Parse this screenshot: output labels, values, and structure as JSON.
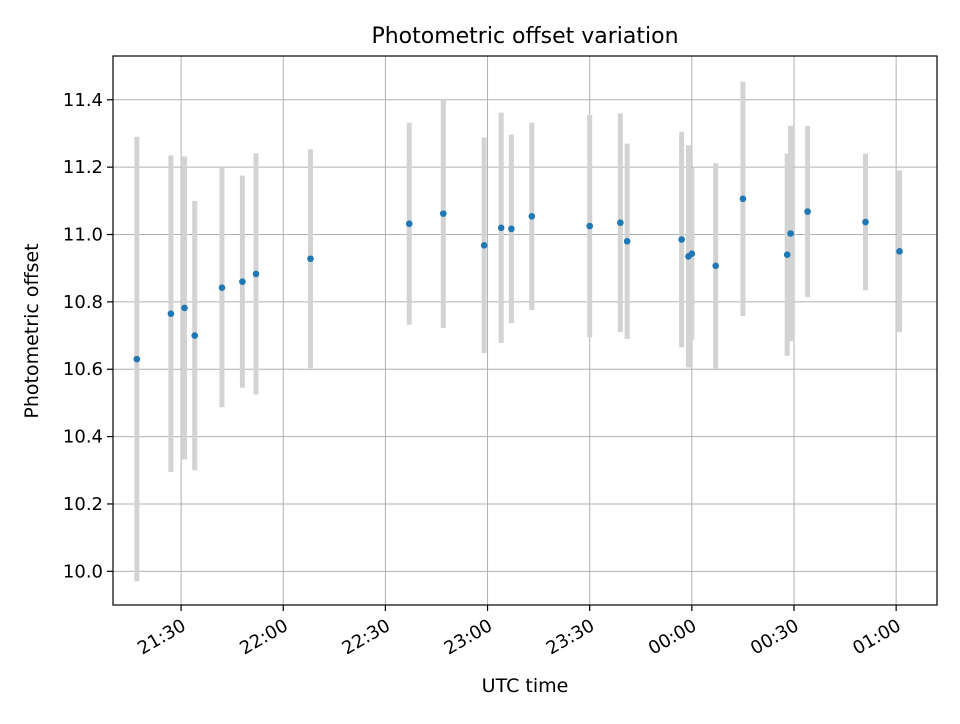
{
  "chart_data": {
    "type": "scatter",
    "title": "Photometric offset variation",
    "xlabel": "UTC time",
    "ylabel": "Photometric offset",
    "x_axis_kind": "time",
    "xlim": [
      "21:10",
      "25:12"
    ],
    "ylim": [
      9.9,
      11.53
    ],
    "grid": true,
    "x_ticks": [
      "21:30",
      "22:00",
      "22:30",
      "23:00",
      "23:30",
      "00:00",
      "00:30",
      "01:00"
    ],
    "y_ticks": [
      10.0,
      10.2,
      10.4,
      10.6,
      10.8,
      11.0,
      11.2,
      11.4
    ],
    "errorbar_color": "#d3d3d3",
    "marker_color": "#1f77b4",
    "series": [
      {
        "points": [
          {
            "t": "21:17",
            "y": 10.63,
            "err": 0.66
          },
          {
            "t": "21:27",
            "y": 10.765,
            "err": 0.47
          },
          {
            "t": "21:31",
            "y": 10.782,
            "err": 0.45
          },
          {
            "t": "21:34",
            "y": 10.7,
            "err": 0.4
          },
          {
            "t": "21:42",
            "y": 10.842,
            "err": 0.355
          },
          {
            "t": "21:48",
            "y": 10.86,
            "err": 0.315
          },
          {
            "t": "21:52",
            "y": 10.883,
            "err": 0.358
          },
          {
            "t": "22:08",
            "y": 10.928,
            "err": 0.325
          },
          {
            "t": "22:37",
            "y": 11.032,
            "err": 0.3
          },
          {
            "t": "22:47",
            "y": 11.062,
            "err": 0.34
          },
          {
            "t": "22:59",
            "y": 10.968,
            "err": 0.32
          },
          {
            "t": "23:04",
            "y": 11.02,
            "err": 0.342
          },
          {
            "t": "23:07",
            "y": 11.017,
            "err": 0.28
          },
          {
            "t": "23:13",
            "y": 11.054,
            "err": 0.278
          },
          {
            "t": "23:30",
            "y": 11.025,
            "err": 0.33
          },
          {
            "t": "23:39",
            "y": 11.035,
            "err": 0.325
          },
          {
            "t": "23:41",
            "y": 10.98,
            "err": 0.29
          },
          {
            "t": "23:57",
            "y": 10.985,
            "err": 0.32
          },
          {
            "t": "23:59",
            "y": 10.935,
            "err": 0.33
          },
          {
            "t": "24:00",
            "y": 10.943,
            "err": 0.255
          },
          {
            "t": "24:07",
            "y": 10.907,
            "err": 0.305
          },
          {
            "t": "24:15",
            "y": 11.106,
            "err": 0.348
          },
          {
            "t": "24:28",
            "y": 10.94,
            "err": 0.3
          },
          {
            "t": "24:29",
            "y": 11.003,
            "err": 0.32
          },
          {
            "t": "24:34",
            "y": 11.068,
            "err": 0.254
          },
          {
            "t": "24:51",
            "y": 11.037,
            "err": 0.203
          },
          {
            "t": "25:01",
            "y": 10.95,
            "err": 0.24
          }
        ]
      }
    ]
  }
}
